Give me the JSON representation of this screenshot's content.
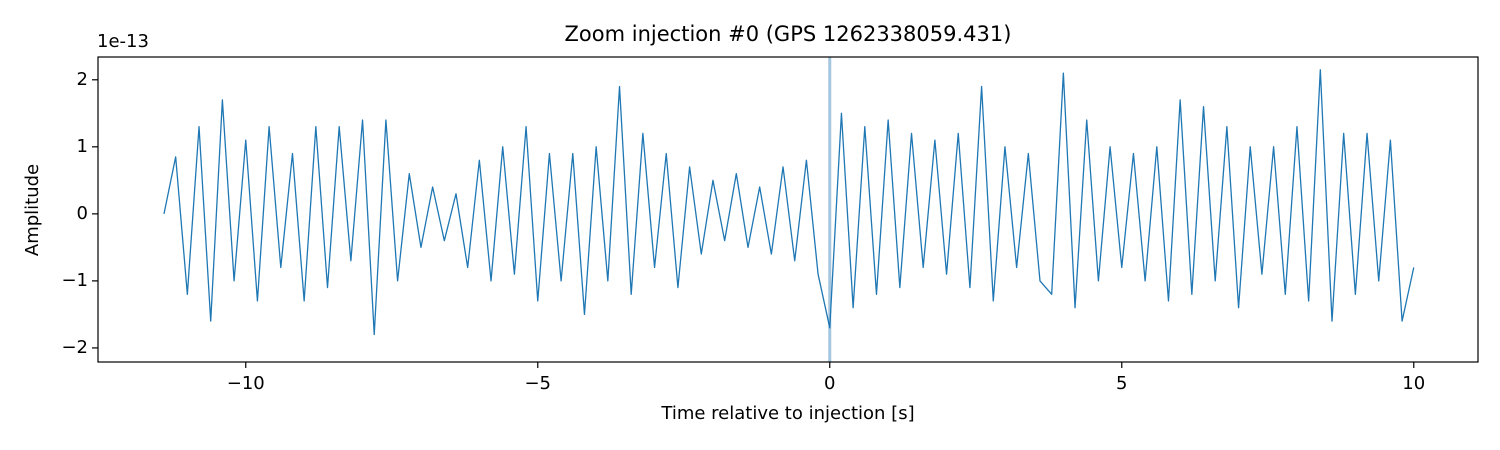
{
  "chart_data": {
    "type": "line",
    "title": "Zoom injection #0 (GPS 1262338059.431)",
    "x_label": "Time relative to injection [s]",
    "y_label": "Amplitude",
    "y_offset_label": "1e-13",
    "x": [
      -11.4,
      -11.2,
      -11.0,
      -10.8,
      -10.6,
      -10.4,
      -10.2,
      -10.0,
      -9.8,
      -9.6,
      -9.4,
      -9.2,
      -9.0,
      -8.8,
      -8.6,
      -8.4,
      -8.2,
      -8.0,
      -7.8,
      -7.6,
      -7.4,
      -7.2,
      -7.0,
      -6.8,
      -6.6,
      -6.4,
      -6.2,
      -6.0,
      -5.8,
      -5.6,
      -5.4,
      -5.2,
      -5.0,
      -4.8,
      -4.6,
      -4.4,
      -4.2,
      -4.0,
      -3.8,
      -3.6,
      -3.4,
      -3.2,
      -3.0,
      -2.8,
      -2.6,
      -2.4,
      -2.2,
      -2.0,
      -1.8,
      -1.6,
      -1.4,
      -1.2,
      -1.0,
      -0.8,
      -0.6,
      -0.4,
      -0.2,
      0.0,
      0.2,
      0.4,
      0.6,
      0.8,
      1.0,
      1.2,
      1.4,
      1.6,
      1.8,
      2.0,
      2.2,
      2.4,
      2.6,
      2.8,
      3.0,
      3.2,
      3.4,
      3.6,
      3.8,
      4.0,
      4.2,
      4.4,
      4.6,
      4.8,
      5.0,
      5.2,
      5.4,
      5.6,
      5.8,
      6.0,
      6.2,
      6.4,
      6.6,
      6.8,
      7.0,
      7.2,
      7.4,
      7.6,
      7.8,
      8.0,
      8.2,
      8.4,
      8.6,
      8.8,
      9.0,
      9.2,
      9.4,
      9.6,
      9.8,
      10.0
    ],
    "series": [
      {
        "color": "#1f77b4",
        "values": [
          0.0,
          0.85,
          -1.2,
          1.3,
          -1.6,
          1.7,
          -1.0,
          1.1,
          -1.3,
          1.3,
          -0.8,
          0.9,
          -1.3,
          1.3,
          -1.1,
          1.3,
          -0.7,
          1.4,
          -1.8,
          1.4,
          -1.0,
          0.6,
          -0.5,
          0.4,
          -0.4,
          0.3,
          -0.8,
          0.8,
          -1.0,
          1.0,
          -0.9,
          1.3,
          -1.3,
          0.9,
          -1.0,
          0.9,
          -1.5,
          1.0,
          -1.0,
          1.9,
          -1.2,
          1.2,
          -0.8,
          0.9,
          -1.1,
          0.7,
          -0.6,
          0.5,
          -0.4,
          0.6,
          -0.5,
          0.4,
          -0.6,
          0.7,
          -0.7,
          0.8,
          -0.9,
          -1.7,
          1.5,
          -1.4,
          1.3,
          -1.2,
          1.4,
          -1.1,
          1.2,
          -0.8,
          1.1,
          -0.9,
          1.2,
          -1.1,
          1.9,
          -1.3,
          1.0,
          -0.8,
          0.9,
          -1.0,
          -1.2,
          2.1,
          -1.4,
          1.4,
          -1.0,
          1.0,
          -0.8,
          0.9,
          -1.0,
          1.0,
          -1.3,
          1.7,
          -1.2,
          1.6,
          -1.0,
          1.3,
          -1.4,
          1.0,
          -0.9,
          1.0,
          -1.2,
          1.3,
          -1.3,
          2.15,
          -1.6,
          1.2,
          -1.2,
          1.2,
          -1.0,
          1.1,
          -1.6,
          -0.8
        ]
      }
    ],
    "vline": {
      "x": 0,
      "color": "#a4c6df"
    },
    "xlim": [
      -12.53,
      11.1
    ],
    "ylim": [
      -2.21,
      2.34
    ],
    "xticks": [
      {
        "value": -10,
        "label": "−10"
      },
      {
        "value": -5,
        "label": "−5"
      },
      0,
      5,
      10
    ],
    "yticks": [
      {
        "value": -2,
        "label": "−2"
      },
      {
        "value": -1,
        "label": "−1"
      },
      0,
      1,
      2
    ]
  }
}
